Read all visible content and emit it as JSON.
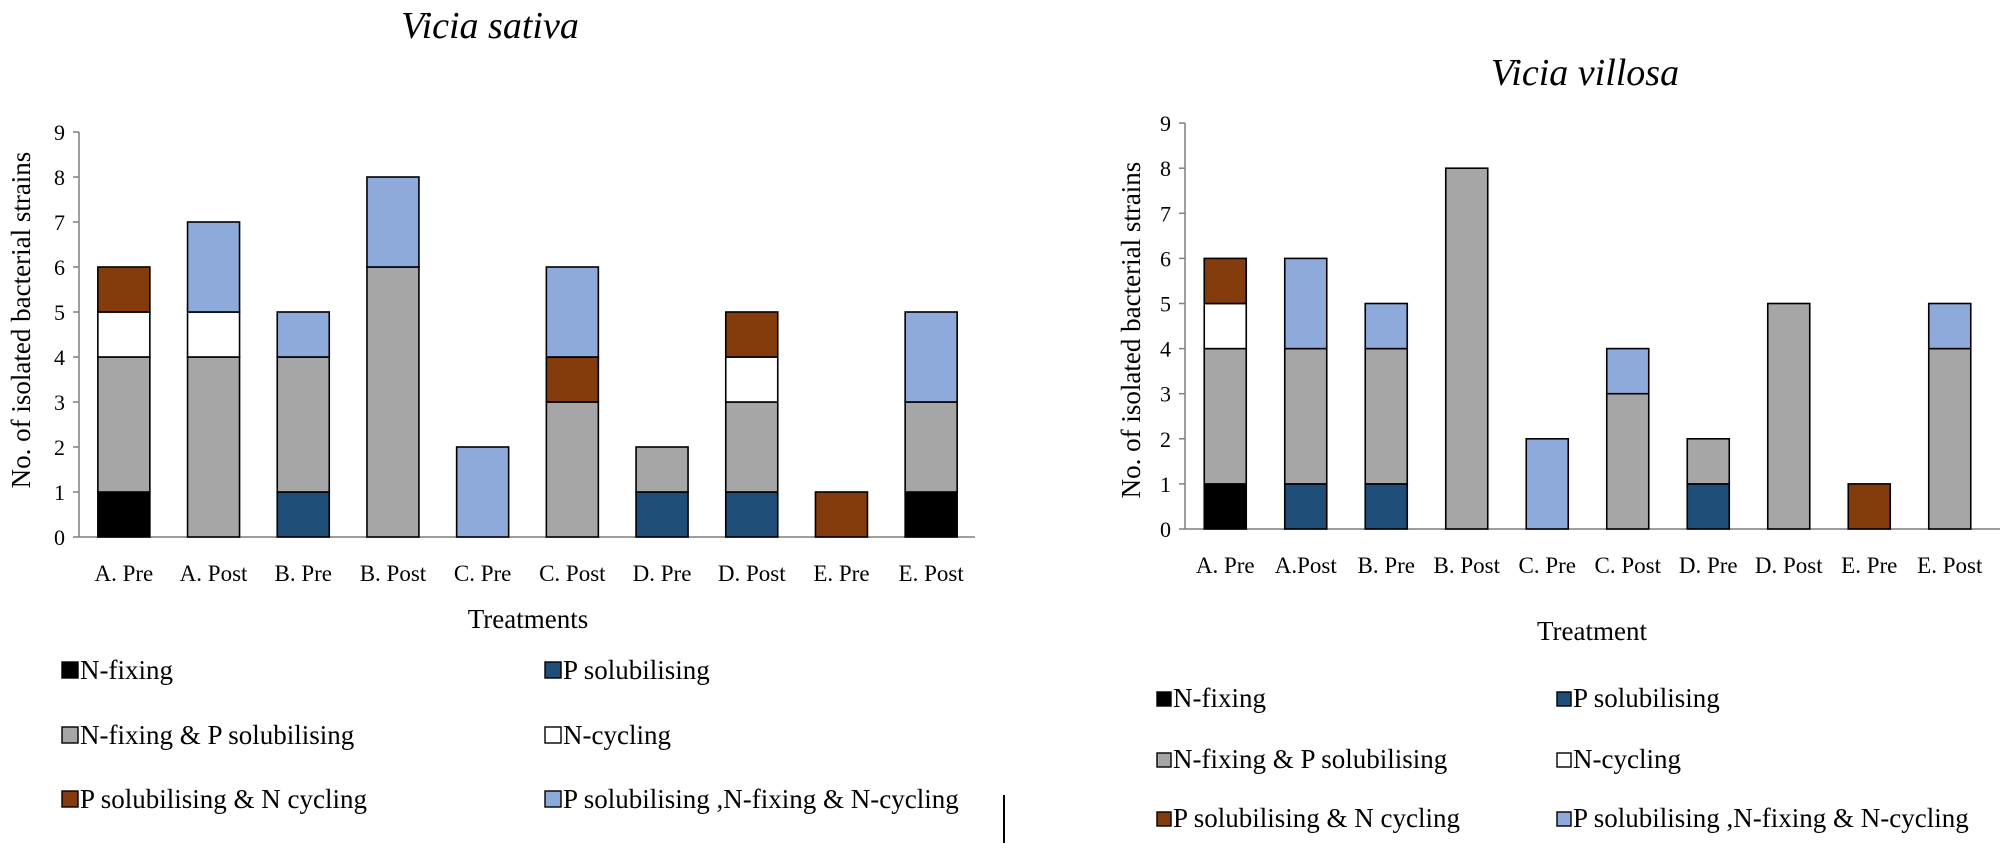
{
  "segment_colors": {
    "N-fixing": "#000000",
    "P solubilising": "#1f4e79",
    "N-fixing & P solubilising": "#a6a6a6",
    "N-cycling": "#ffffff",
    "P solubilising & N cycling": "#843c0c",
    "P solubilising ,N-fixing & N-cycling": "#8eaadb"
  },
  "chart_data": [
    {
      "type": "bar",
      "stacked": true,
      "title": "Vicia sativa",
      "xlabel": "Treatments",
      "ylabel": "No. of isolated bacterial strains",
      "ylim": [
        0,
        9
      ],
      "yticks": [
        "0",
        "1",
        "2",
        "3",
        "4",
        "5",
        "6",
        "7",
        "8",
        "9"
      ],
      "categories": [
        "A. Pre",
        "A. Post",
        "B. Pre",
        "B. Post",
        "C. Pre",
        "C. Post",
        "D. Pre",
        "D. Post",
        "E. Pre",
        "E. Post"
      ],
      "series": [
        {
          "name": "N-fixing",
          "values": [
            1,
            0,
            0,
            0,
            0,
            0,
            0,
            0,
            0,
            1
          ]
        },
        {
          "name": "P solubilising",
          "values": [
            0,
            0,
            1,
            0,
            0,
            0,
            1,
            1,
            0,
            0
          ]
        },
        {
          "name": "N-fixing & P solubilising",
          "values": [
            3,
            4,
            3,
            6,
            0,
            3,
            1,
            2,
            0,
            2
          ]
        },
        {
          "name": "N-cycling",
          "values": [
            1,
            1,
            0,
            0,
            0,
            0,
            0,
            1,
            0,
            0
          ]
        },
        {
          "name": "P solubilising & N cycling",
          "values": [
            1,
            0,
            0,
            0,
            0,
            1,
            0,
            1,
            1,
            0
          ]
        },
        {
          "name": "P solubilising ,N-fixing & N-cycling",
          "values": [
            0,
            2,
            1,
            2,
            2,
            2,
            0,
            0,
            0,
            2
          ]
        }
      ],
      "legend": [
        "N-fixing",
        "P solubilising",
        "N-fixing & P solubilising",
        "N-cycling",
        "P solubilising & N cycling",
        "P solubilising ,N-fixing & N-cycling"
      ]
    },
    {
      "type": "bar",
      "stacked": true,
      "title": "Vicia villosa",
      "xlabel": "Treatment",
      "ylabel": "No. of isolated bacterial strains",
      "ylim": [
        0,
        9
      ],
      "yticks": [
        "0",
        "1",
        "2",
        "3",
        "4",
        "5",
        "6",
        "7",
        "8",
        "9"
      ],
      "categories": [
        "A. Pre",
        "A.Post",
        "B. Pre",
        "B. Post",
        "C. Pre",
        "C. Post",
        "D. Pre",
        "D. Post",
        "E. Pre",
        "E. Post"
      ],
      "series": [
        {
          "name": "N-fixing",
          "values": [
            1,
            0,
            0,
            0,
            0,
            0,
            0,
            0,
            0,
            0
          ]
        },
        {
          "name": "P solubilising",
          "values": [
            0,
            1,
            1,
            0,
            0,
            0,
            1,
            0,
            0,
            0
          ]
        },
        {
          "name": "N-fixing & P solubilising",
          "values": [
            3,
            3,
            3,
            8,
            0,
            3,
            1,
            5,
            0,
            4
          ]
        },
        {
          "name": "N-cycling",
          "values": [
            1,
            0,
            0,
            0,
            0,
            0,
            0,
            0,
            0,
            0
          ]
        },
        {
          "name": "P solubilising & N cycling",
          "values": [
            1,
            0,
            0,
            0,
            0,
            0,
            0,
            0,
            1,
            0
          ]
        },
        {
          "name": "P solubilising ,N-fixing & N-cycling",
          "values": [
            0,
            2,
            1,
            0,
            2,
            1,
            0,
            0,
            0,
            1
          ]
        }
      ],
      "legend": [
        "N-fixing",
        "P solubilising",
        "N-fixing & P solubilising",
        "N-cycling",
        "P solubilising & N cycling",
        "P solubilising ,N-fixing & N-cycling"
      ]
    }
  ]
}
